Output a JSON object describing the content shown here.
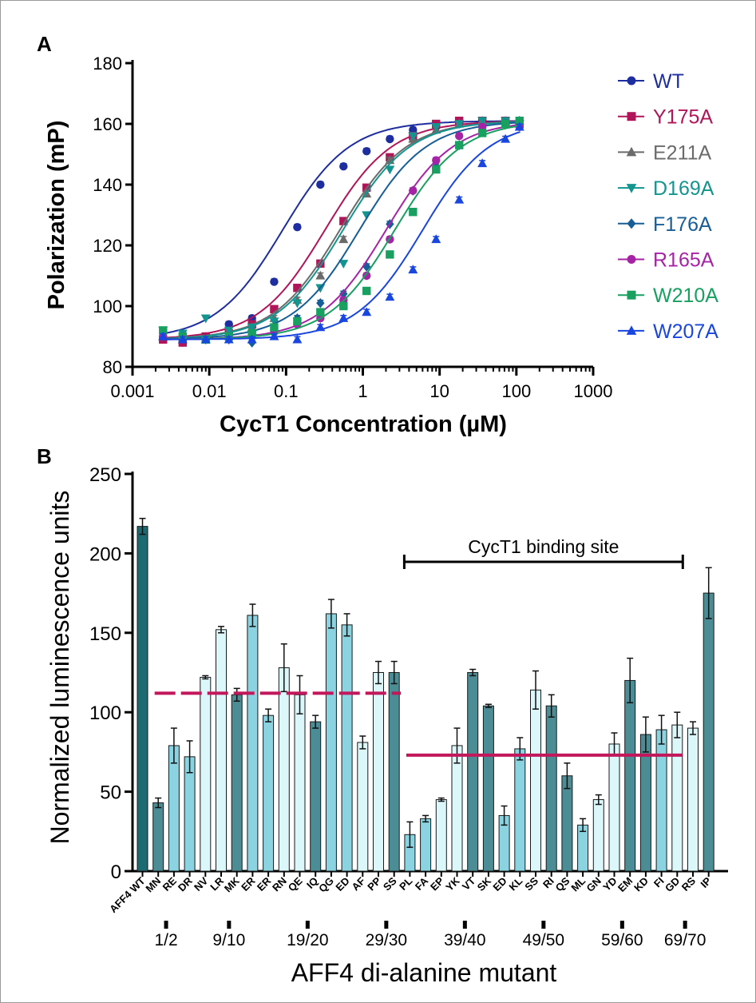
{
  "chart_data": [
    {
      "panel": "A",
      "type": "scatter",
      "xlabel": "CycT1 Concentration (µM)",
      "ylabel": "Polarization (mP)",
      "xscale": "log",
      "xlim": [
        0.001,
        1000
      ],
      "ylim": [
        80,
        180
      ],
      "xticks": [
        "0.001",
        "0.01",
        "0.1",
        "1",
        "10",
        "100",
        "1000"
      ],
      "xtick_values": [
        0.001,
        0.01,
        0.1,
        1,
        10,
        100,
        1000
      ],
      "yticks": [
        80,
        100,
        120,
        140,
        160,
        180
      ],
      "legend_position": "right",
      "x": [
        0.0025,
        0.0045,
        0.009,
        0.018,
        0.036,
        0.07,
        0.14,
        0.28,
        0.56,
        1.12,
        2.25,
        4.5,
        9,
        18,
        36,
        72,
        110
      ],
      "series": [
        {
          "name": "WT",
          "color": "#1f2e9e",
          "marker": "circle",
          "ec50": 0.09,
          "values": [
            89,
            88,
            90,
            94,
            96,
            108,
            126,
            140,
            146,
            151,
            155,
            158,
            159,
            160,
            161,
            161,
            161
          ]
        },
        {
          "name": "Y175A",
          "color": "#b0155a",
          "marker": "square",
          "ec50": 0.32,
          "values": [
            89,
            88,
            90,
            91,
            94,
            99,
            106,
            114,
            128,
            139,
            149,
            156,
            160,
            161,
            161,
            161,
            160
          ]
        },
        {
          "name": "E211A",
          "color": "#6b6b6b",
          "marker": "triangle",
          "ec50": 0.5,
          "values": [
            90,
            89,
            89,
            91,
            93,
            96,
            102,
            110,
            122,
            137,
            148,
            155,
            158,
            160,
            161,
            161,
            161
          ]
        },
        {
          "name": "D169A",
          "color": "#14948f",
          "marker": "triangle-down",
          "ec50": 0.55,
          "values": [
            92,
            91,
            96,
            92,
            93,
            95,
            101,
            106,
            114,
            130,
            145,
            156,
            159,
            160,
            161,
            161,
            160
          ]
        },
        {
          "name": "F176A",
          "color": "#175e96",
          "marker": "diamond",
          "ec50": 0.9,
          "values": [
            90,
            90,
            89,
            89,
            88,
            91,
            96,
            101,
            104,
            113,
            127,
            138,
            146,
            153,
            158,
            160,
            161
          ]
        },
        {
          "name": "R165A",
          "color": "#a524a5",
          "marker": "circle",
          "ec50": 2.0,
          "values": [
            90,
            89,
            89,
            90,
            91,
            92,
            94,
            96,
            102,
            110,
            122,
            138,
            148,
            156,
            159,
            160,
            159
          ]
        },
        {
          "name": "W210A",
          "color": "#18a060",
          "marker": "square",
          "ec50": 2.6,
          "values": [
            92,
            90,
            89,
            90,
            91,
            93,
            95,
            98,
            100,
            105,
            117,
            131,
            145,
            153,
            157,
            160,
            161
          ]
        },
        {
          "name": "W207A",
          "color": "#1a46e0",
          "marker": "triangle",
          "ec50": 6.0,
          "values": [
            90,
            89,
            89,
            89,
            89,
            90,
            89,
            93,
            96,
            98,
            103,
            112,
            122,
            135,
            147,
            155,
            159
          ]
        }
      ]
    },
    {
      "panel": "B",
      "type": "bar",
      "xlabel": "AFF4  di-alanine mutant",
      "ylabel": "Normalized luminescence units",
      "ylim": [
        0,
        250
      ],
      "yticks": [
        0,
        50,
        100,
        150,
        200,
        250
      ],
      "categories": [
        "AFF4 WT",
        "MN",
        "RE",
        "DR",
        "NV",
        "LR",
        "MK",
        "ER",
        "ER",
        "RN",
        "QE",
        "IQ",
        "QG",
        "ED",
        "AF",
        "PP",
        "SS",
        "PL",
        "FA",
        "EP",
        "YK",
        "VT",
        "SK",
        "ED",
        "KL",
        "SS",
        "RI",
        "QS",
        "ML",
        "GN",
        "YD",
        "EM",
        "KD",
        "FI",
        "GD",
        "RS",
        "IP"
      ],
      "values": [
        217,
        43,
        79,
        72,
        122,
        152,
        111,
        161,
        98,
        128,
        111,
        94,
        162,
        155,
        81,
        125,
        125,
        23,
        33,
        45,
        79,
        125,
        104,
        35,
        77,
        114,
        104,
        60,
        29,
        45,
        80,
        120,
        86,
        89,
        92,
        90,
        175
      ],
      "errors": [
        5,
        3,
        11,
        10,
        1,
        2,
        4,
        7,
        4,
        15,
        12,
        4,
        9,
        7,
        4,
        7,
        7,
        8,
        2,
        1,
        11,
        2,
        1,
        6,
        7,
        12,
        7,
        8,
        4,
        3,
        7,
        14,
        11,
        9,
        8,
        4,
        16
      ],
      "tone": [
        "wt",
        "dark",
        "mid",
        "mid",
        "light",
        "light",
        "dark",
        "mid",
        "mid",
        "light",
        "light",
        "dark",
        "mid",
        "mid",
        "light",
        "light",
        "dark",
        "mid",
        "mid",
        "light",
        "light",
        "dark",
        "dark",
        "mid",
        "mid",
        "light",
        "dark",
        "dark",
        "mid",
        "light",
        "light",
        "dark",
        "dark",
        "mid",
        "light",
        "light",
        "dark"
      ],
      "colors": {
        "wt": "#1d6b72",
        "dark": "#4c8c94",
        "mid": "#8bd3e0",
        "light": "#dcf7fa",
        "edge": "#1a1a1a",
        "reference_line": "#c2185b"
      },
      "group_labels": [
        "1/2",
        "9/10",
        "19/20",
        "29/30",
        "39/40",
        "49/50",
        "59/60",
        "69/70"
      ],
      "group_after_index": [
        1,
        5,
        10,
        15,
        20,
        25,
        30,
        34
      ],
      "annotation": {
        "text": "CycT1 binding site",
        "from_index": 17,
        "to_index": 34
      },
      "reference_lines": [
        {
          "style": "dashed",
          "y": 112,
          "from_index": 1,
          "to_index": 16
        },
        {
          "style": "solid",
          "y": 73,
          "from_index": 17,
          "to_index": 34
        }
      ]
    }
  ],
  "panel_labels": [
    "A",
    "B"
  ]
}
